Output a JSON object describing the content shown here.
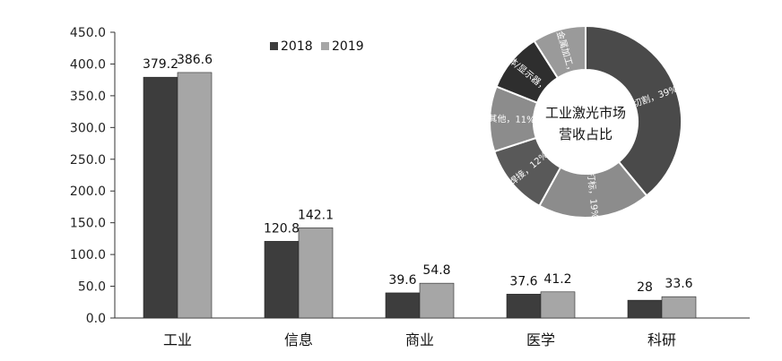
{
  "chart_data": [
    {
      "type": "bar",
      "categories": [
        "工业",
        "信息",
        "商业",
        "医学",
        "科研"
      ],
      "series": [
        {
          "name": "2018",
          "values": [
            379.2,
            120.8,
            39.6,
            37.6,
            28
          ],
          "labels": [
            "379.2",
            "120.8",
            "39.6",
            "37.6",
            "28"
          ]
        },
        {
          "name": "2019",
          "values": [
            386.6,
            142.1,
            54.8,
            41.2,
            33.6
          ],
          "labels": [
            "386.6",
            "142.1",
            "54.8",
            "41.2",
            "33.6"
          ]
        }
      ],
      "ylim": [
        0,
        450
      ],
      "yticks": [
        "0.0",
        "50.0",
        "100.0",
        "150.0",
        "200.0",
        "250.0",
        "300.0",
        "350.0",
        "400.0",
        "450.0"
      ],
      "legend_position": "top",
      "grid": false,
      "colors": [
        "#3d3d3d",
        "#a6a6a6"
      ]
    },
    {
      "type": "pie",
      "title": "工业激光市场营收占比",
      "title_lines": [
        "工业激光市场",
        "营收占比"
      ],
      "slices": [
        {
          "label": "切割，39%",
          "value": 39,
          "color": "#4a4a4a"
        },
        {
          "label": "打标，19%",
          "value": 19,
          "color": "#8c8c8c"
        },
        {
          "label": "焊接，12%",
          "value": 12,
          "color": "#595959"
        },
        {
          "label": "其他，11%",
          "value": 11,
          "color": "#8c8c8c"
        },
        {
          "label": "半导体/显示器，10%",
          "value": 10,
          "color": "#2e2e2e"
        },
        {
          "label": "精密金属加工，9%",
          "value": 9,
          "color": "#9a9a9a"
        }
      ]
    }
  ]
}
